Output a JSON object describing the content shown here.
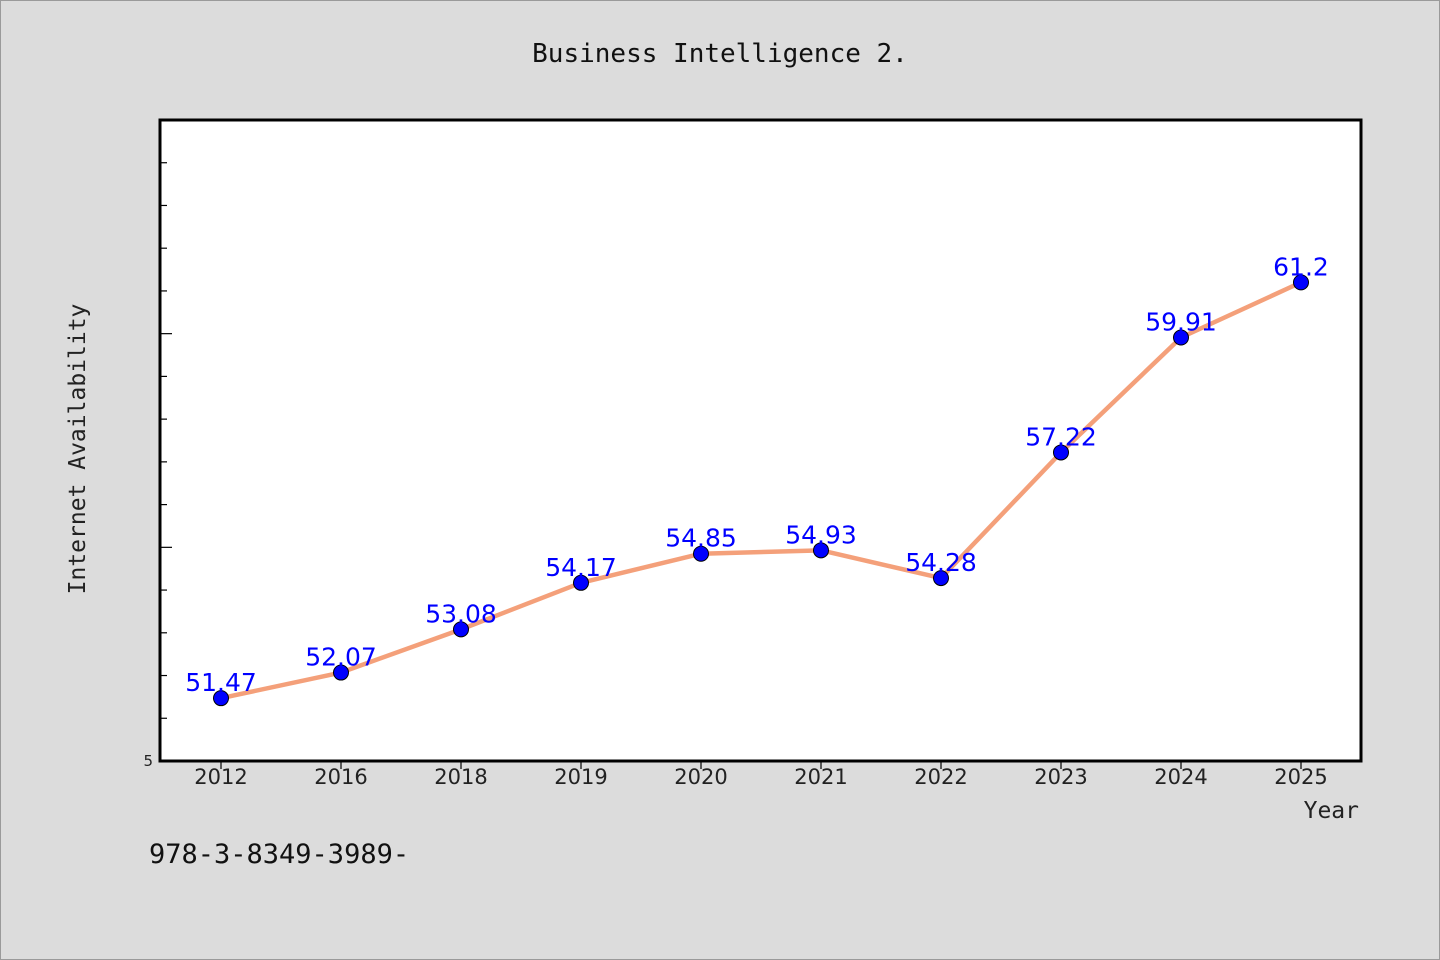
{
  "chart_data": {
    "type": "line",
    "title": "Business Intelligence 2.",
    "xlabel": "Year",
    "ylabel": "Internet Availability",
    "categories": [
      "2012",
      "2016",
      "2018",
      "2019",
      "2020",
      "2021",
      "2022",
      "2023",
      "2024",
      "2025"
    ],
    "series": [
      {
        "values": [
          51.47,
          52.07,
          53.08,
          54.17,
          54.85,
          54.93,
          54.28,
          57.22,
          59.91,
          61.2
        ]
      }
    ],
    "data_labels": [
      "51.47",
      "52.07",
      "53.08",
      "54.17",
      "54.85",
      "54.93",
      "54.28",
      "57.22",
      "59.91",
      "61.2"
    ],
    "y_tick_labels": [
      "5"
    ],
    "ylim": [
      50,
      65
    ],
    "grid": false,
    "legend": "none",
    "colors": {
      "line": "#f4a07a",
      "marker": "#0000ff",
      "labels": "#0000ff",
      "background": "#dcdcdc",
      "plot_background": "#ffffff"
    }
  },
  "footer": {
    "text": "978-3-8349-3989-"
  }
}
